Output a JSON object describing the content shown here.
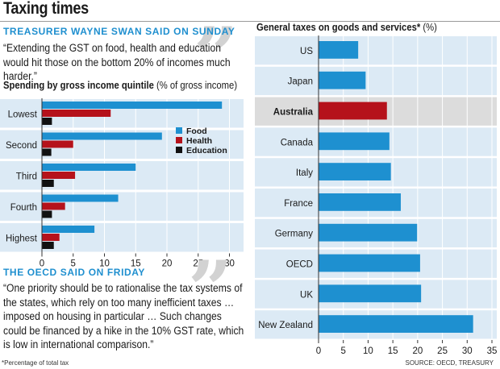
{
  "title": "Taxing times",
  "swan": {
    "kicker": "TREASURER WAYNE SWAN SAID ON SUNDAY",
    "quote": "“Extending the GST on food, health and education would hit those on the bottom 20% of incomes much harder.”"
  },
  "oecd": {
    "kicker": "THE OECD SAID ON FRIDAY",
    "quote": "“One priority should be to rationalise the tax systems of the states, which rely on too many inefficient taxes … imposed on housing in particular … Such changes could be financed by a hike in the 10% GST rate, which is low in international comparison.”"
  },
  "left_chart": {
    "title_bold": "Spending by gross income quintile",
    "title_rest": " (% of gross income)"
  },
  "right_chart": {
    "title_bold": "General taxes on goods and services*",
    "title_rest": " (%)"
  },
  "footnote": "*Percentage of total tax",
  "source": "SOURCE: OECD, TREASURY",
  "colors": {
    "food": "#1e90d0",
    "health": "#b5121b",
    "education": "#111111",
    "highlight": "#b5121b",
    "band_light": "#dceaf5",
    "band_highlight": "#dcdcdc"
  },
  "chart_data": [
    {
      "type": "bar",
      "orientation": "horizontal",
      "title": "Spending by gross income quintile (% of gross income)",
      "categories": [
        "Lowest",
        "Second",
        "Third",
        "Fourth",
        "Highest"
      ],
      "series": [
        {
          "name": "Food",
          "values": [
            28.8,
            19.2,
            15.0,
            12.2,
            8.4
          ]
        },
        {
          "name": "Health",
          "values": [
            11.0,
            5.0,
            5.3,
            3.7,
            2.8
          ]
        },
        {
          "name": "Education",
          "values": [
            1.6,
            1.5,
            1.9,
            1.6,
            1.9
          ]
        }
      ],
      "xlim": [
        0,
        32
      ],
      "xticks": [
        0,
        5,
        10,
        15,
        20,
        25,
        30
      ],
      "legend_position": "right"
    },
    {
      "type": "bar",
      "orientation": "horizontal",
      "title": "General taxes on goods and services* (%)",
      "categories": [
        "US",
        "Japan",
        "Australia",
        "Canada",
        "Italy",
        "France",
        "Germany",
        "OECD",
        "UK",
        "New Zealand"
      ],
      "values": [
        8.0,
        9.5,
        13.8,
        14.3,
        14.6,
        16.6,
        19.9,
        20.5,
        20.7,
        31.2
      ],
      "highlight": "Australia",
      "xlim": [
        0,
        35
      ],
      "xticks": [
        0,
        5,
        10,
        15,
        20,
        25,
        30,
        35
      ]
    }
  ]
}
